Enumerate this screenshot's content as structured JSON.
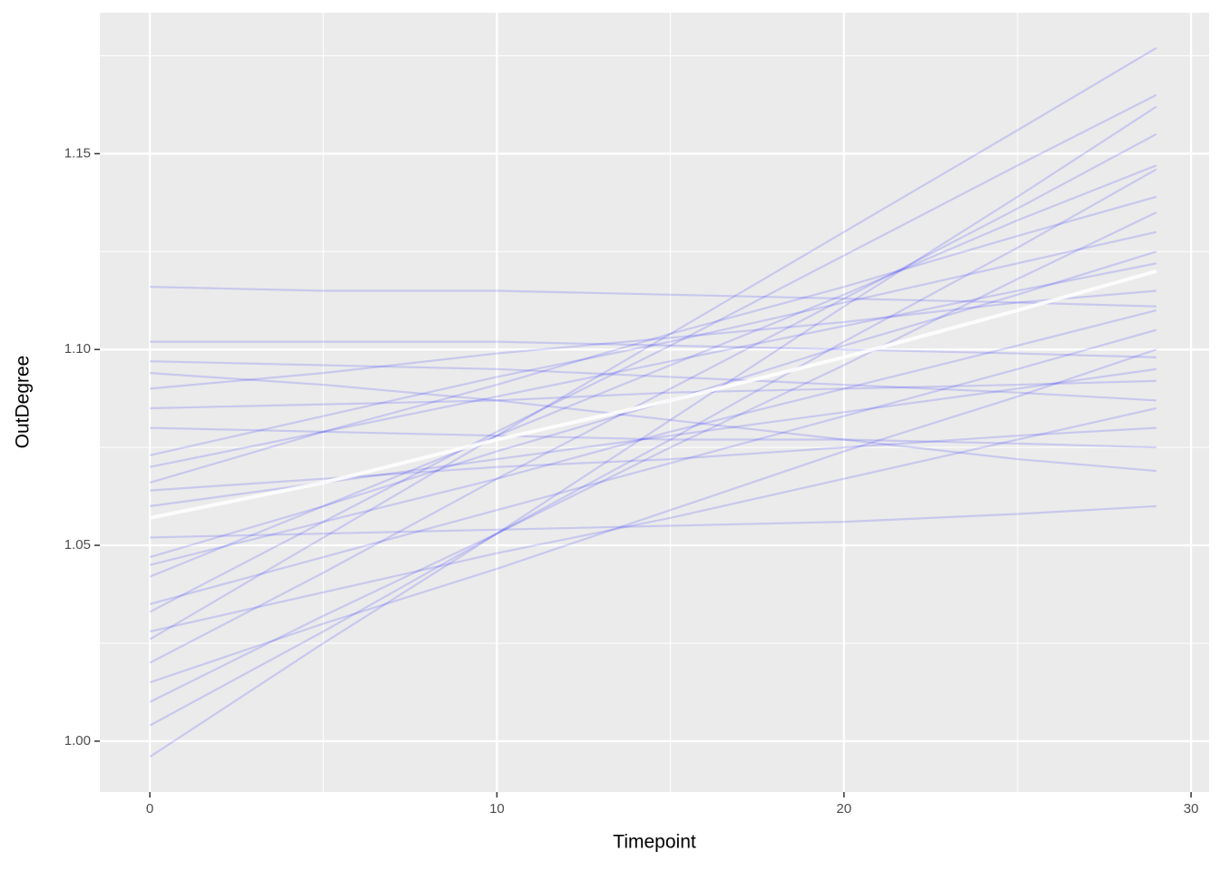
{
  "chart_data": {
    "type": "line",
    "x_label": "Timepoint",
    "y_label": "OutDegree",
    "x": [
      0,
      5,
      10,
      15,
      20,
      25,
      29
    ],
    "xlim": [
      -1.44,
      30.52
    ],
    "xticks": [
      0,
      10,
      20,
      30
    ],
    "xminor": [
      5,
      15,
      25
    ],
    "ylim": [
      0.987,
      1.186
    ],
    "yticks": [
      {
        "value": 1.0,
        "label": "1.00"
      },
      1.05,
      {
        "value": 1.1,
        "label": "1.10"
      },
      1.15
    ],
    "yminor": [
      1.025,
      1.075,
      1.125,
      1.175
    ],
    "grid": true,
    "line_opacity": 0.15,
    "series": [
      {
        "color": "#0000ff",
        "values": [
          1.116,
          1.115,
          1.115,
          1.114,
          1.113,
          1.112,
          1.111
        ]
      },
      {
        "color": "#0000ff",
        "values": [
          1.102,
          1.102,
          1.102,
          1.101,
          1.1,
          1.099,
          1.098
        ]
      },
      {
        "color": "#0000ff",
        "values": [
          1.097,
          1.096,
          1.095,
          1.093,
          1.091,
          1.089,
          1.087
        ]
      },
      {
        "color": "#0000ff",
        "values": [
          1.094,
          1.091,
          1.087,
          1.082,
          1.077,
          1.072,
          1.069
        ]
      },
      {
        "color": "#0000ff",
        "values": [
          1.073,
          1.083,
          1.093,
          1.102,
          1.112,
          1.122,
          1.13
        ]
      },
      {
        "color": "#0000ff",
        "values": [
          1.066,
          1.079,
          1.091,
          1.104,
          1.116,
          1.129,
          1.139
        ]
      },
      {
        "color": "#0000ff",
        "values": [
          1.047,
          1.06,
          1.074,
          1.087,
          1.101,
          1.114,
          1.125
        ]
      },
      {
        "color": "#0000ff",
        "values": [
          1.042,
          1.06,
          1.078,
          1.096,
          1.114,
          1.133,
          1.147
        ]
      },
      {
        "color": "#0000ff",
        "values": [
          1.033,
          1.056,
          1.079,
          1.101,
          1.124,
          1.147,
          1.165
        ]
      },
      {
        "color": "#0000ff",
        "values": [
          1.026,
          1.052,
          1.078,
          1.104,
          1.13,
          1.156,
          1.177
        ]
      },
      {
        "color": "#0000ff",
        "values": [
          1.02,
          1.043,
          1.067,
          1.09,
          1.113,
          1.136,
          1.155
        ]
      },
      {
        "color": "#0000ff",
        "values": [
          1.004,
          1.028,
          1.053,
          1.077,
          1.102,
          1.126,
          1.146
        ]
      },
      {
        "color": "#0000ff",
        "values": [
          0.996,
          1.025,
          1.053,
          1.082,
          1.111,
          1.139,
          1.162
        ]
      },
      {
        "color": "#0000ff",
        "values": [
          1.01,
          1.032,
          1.053,
          1.075,
          1.096,
          1.118,
          1.135
        ]
      },
      {
        "color": "#0000ff",
        "values": [
          1.035,
          1.047,
          1.059,
          1.071,
          1.083,
          1.095,
          1.105
        ]
      },
      {
        "color": "#0000ff",
        "values": [
          1.052,
          1.053,
          1.054,
          1.055,
          1.056,
          1.058,
          1.06
        ]
      },
      {
        "color": "#0000ff",
        "values": [
          1.08,
          1.079,
          1.078,
          1.077,
          1.077,
          1.076,
          1.075
        ]
      },
      {
        "color": "#0000ff",
        "values": [
          1.085,
          1.086,
          1.087,
          1.089,
          1.09,
          1.091,
          1.092
        ]
      },
      {
        "color": "#0000ff",
        "values": [
          1.09,
          1.094,
          1.099,
          1.103,
          1.107,
          1.112,
          1.115
        ]
      },
      {
        "color": "#0000ff",
        "values": [
          1.06,
          1.066,
          1.072,
          1.078,
          1.084,
          1.09,
          1.095
        ]
      },
      {
        "color": "#0000ff",
        "values": [
          1.07,
          1.079,
          1.088,
          1.097,
          1.106,
          1.115,
          1.122
        ]
      },
      {
        "color": "#0000ff",
        "values": [
          1.045,
          1.056,
          1.067,
          1.079,
          1.09,
          1.101,
          1.11
        ]
      },
      {
        "color": "#0000ff",
        "values": [
          1.015,
          1.03,
          1.044,
          1.059,
          1.074,
          1.088,
          1.1
        ]
      },
      {
        "color": "#0000ff",
        "values": [
          1.028,
          1.038,
          1.048,
          1.057,
          1.067,
          1.077,
          1.085
        ]
      },
      {
        "color": "#0000ff",
        "values": [
          1.064,
          1.067,
          1.07,
          1.072,
          1.075,
          1.078,
          1.08
        ]
      },
      {
        "color": "#ffffff",
        "mean": true,
        "values": [
          1.057,
          1.066,
          1.077,
          1.087,
          1.098,
          1.11,
          1.12
        ]
      }
    ]
  }
}
